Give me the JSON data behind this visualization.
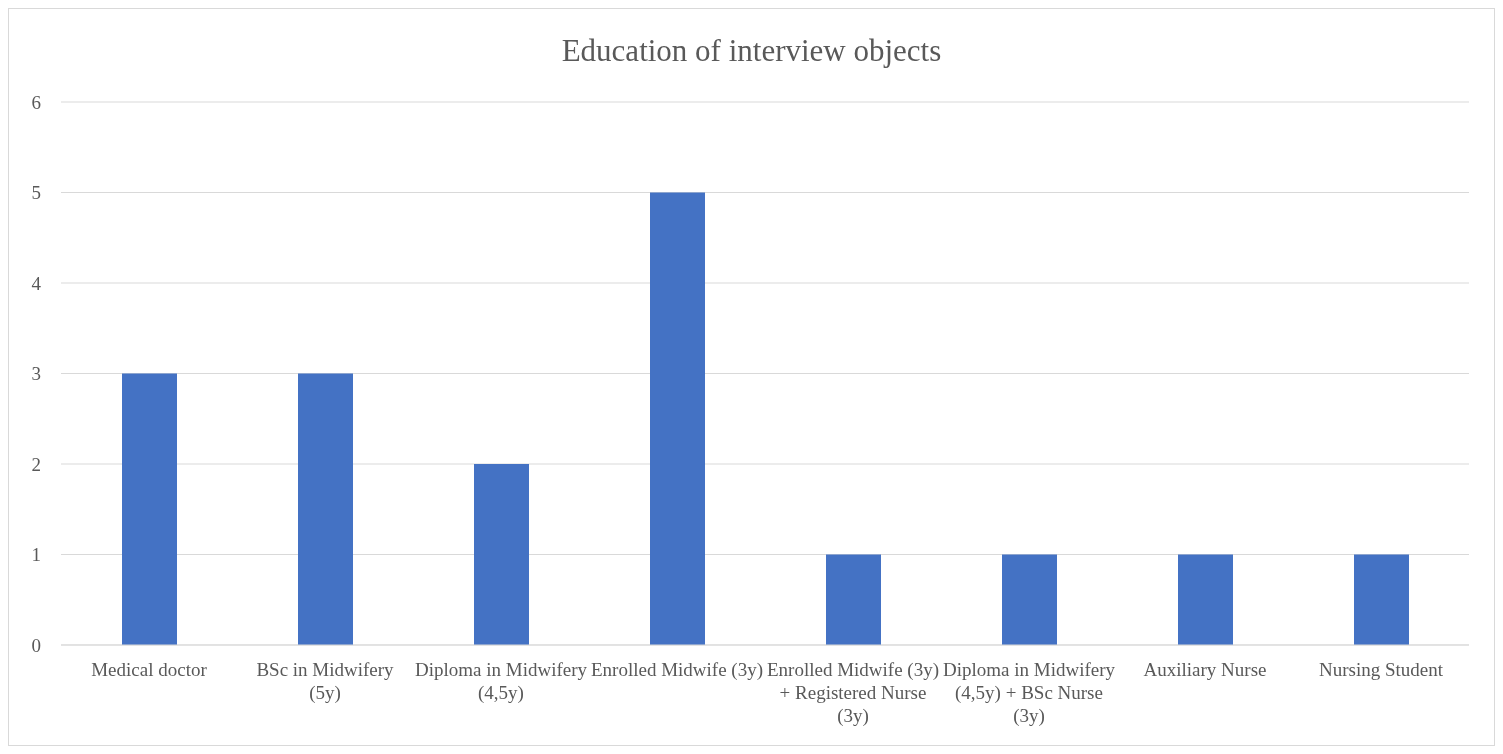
{
  "chart_data": {
    "type": "bar",
    "title": "Education of interview objects",
    "categories": [
      "Medical doctor",
      "BSc in Midwifery (5y)",
      "Diploma in Midwifery (4,5y)",
      "Enrolled Midwife (3y)",
      "Enrolled Midwife (3y) + Registered Nurse (3y)",
      "Diploma in Midwifery (4,5y) + BSc Nurse (3y)",
      "Auxiliary Nurse",
      "Nursing Student"
    ],
    "values": [
      3,
      3,
      2,
      5,
      1,
      1,
      1,
      1
    ],
    "color": "#4472c4",
    "ylim": [
      0,
      6
    ],
    "yticks": [
      0,
      1,
      2,
      3,
      4,
      5,
      6
    ],
    "grid": "y"
  }
}
